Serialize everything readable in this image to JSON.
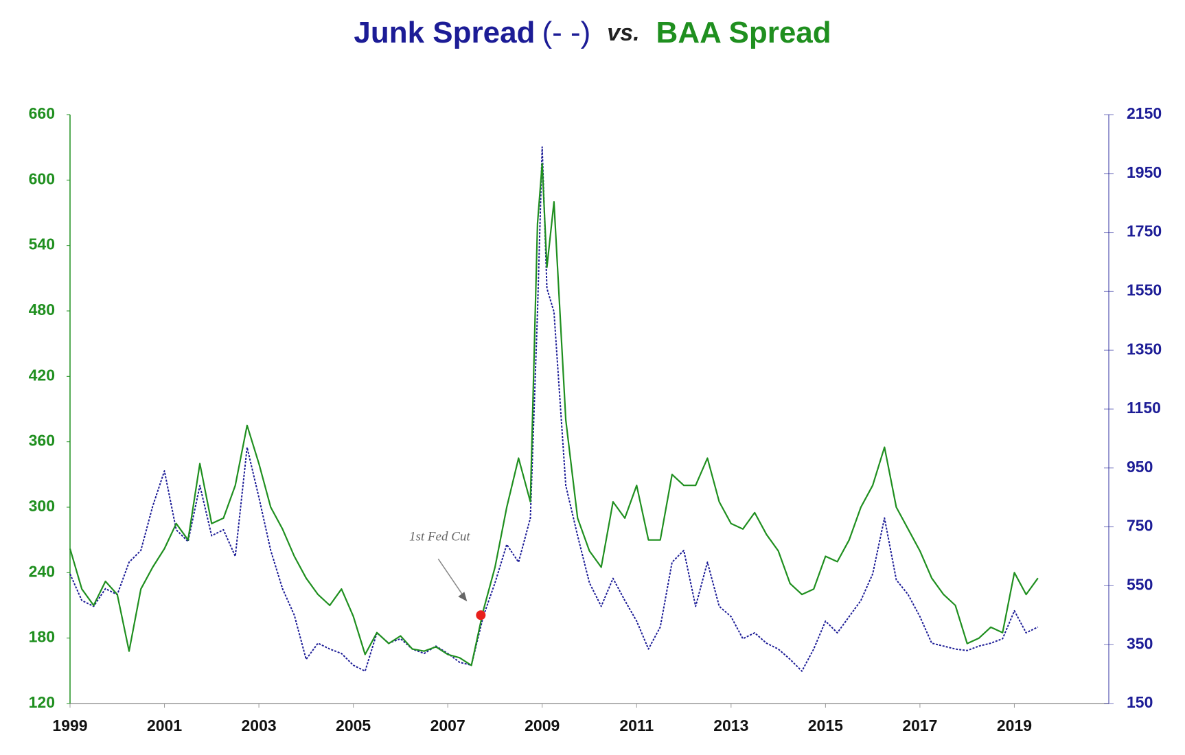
{
  "chart_data": {
    "type": "line",
    "title": {
      "marker": "(- -)",
      "joiner": "vs."
    },
    "x": [
      1999,
      1999.25,
      1999.5,
      1999.75,
      2000,
      2000.25,
      2000.5,
      2000.75,
      2001,
      2001.25,
      2001.5,
      2001.75,
      2002,
      2002.25,
      2002.5,
      2002.75,
      2003,
      2003.25,
      2003.5,
      2003.75,
      2004,
      2004.25,
      2004.5,
      2004.75,
      2005,
      2005.25,
      2005.5,
      2005.75,
      2006,
      2006.25,
      2006.5,
      2006.75,
      2007,
      2007.25,
      2007.5,
      2007.75,
      2008,
      2008.25,
      2008.5,
      2008.75,
      2008.9,
      2009,
      2009.1,
      2009.25,
      2009.5,
      2009.75,
      2010,
      2010.25,
      2010.5,
      2010.75,
      2011,
      2011.25,
      2011.5,
      2011.75,
      2012,
      2012.25,
      2012.5,
      2012.75,
      2013,
      2013.25,
      2013.5,
      2013.75,
      2014,
      2014.25,
      2014.5,
      2014.75,
      2015,
      2015.25,
      2015.5,
      2015.75,
      2016,
      2016.25,
      2016.5,
      2016.75,
      2017,
      2017.25,
      2017.5,
      2017.75,
      2018,
      2018.25,
      2018.5,
      2018.75,
      2019,
      2019.25,
      2019.5
    ],
    "series": [
      {
        "name": "Junk Spread",
        "color": "#1c1c96",
        "axis": "y2",
        "dashed": true,
        "values": [
          590,
          500,
          480,
          540,
          520,
          630,
          670,
          820,
          940,
          740,
          700,
          890,
          720,
          740,
          650,
          1020,
          850,
          670,
          540,
          450,
          300,
          355,
          335,
          320,
          280,
          260,
          390,
          355,
          370,
          335,
          320,
          345,
          320,
          290,
          280,
          445,
          560,
          690,
          630,
          780,
          1480,
          2040,
          1560,
          1480,
          890,
          720,
          560,
          480,
          575,
          500,
          430,
          335,
          410,
          630,
          670,
          480,
          630,
          480,
          445,
          370,
          390,
          355,
          335,
          300,
          260,
          335,
          430,
          390,
          445,
          500,
          590,
          780,
          570,
          520,
          445,
          355,
          345,
          335,
          330,
          345,
          355,
          370,
          465,
          390,
          410
        ]
      },
      {
        "name": "BAA Spread",
        "color": "#1f8f1f",
        "axis": "y",
        "dashed": false,
        "values": [
          262,
          225,
          210,
          232,
          220,
          168,
          225,
          245,
          262,
          285,
          270,
          340,
          285,
          290,
          320,
          375,
          340,
          300,
          280,
          255,
          235,
          220,
          210,
          225,
          200,
          165,
          185,
          175,
          182,
          170,
          168,
          172,
          165,
          162,
          155,
          205,
          245,
          300,
          345,
          305,
          560,
          615,
          520,
          580,
          380,
          290,
          260,
          245,
          305,
          290,
          320,
          270,
          270,
          330,
          320,
          320,
          345,
          305,
          285,
          280,
          295,
          275,
          260,
          230,
          220,
          225,
          255,
          250,
          270,
          300,
          320,
          355,
          300,
          280,
          260,
          235,
          220,
          210,
          175,
          180,
          190,
          185,
          240,
          220,
          235
        ]
      }
    ],
    "xlim": [
      1999,
      2021
    ],
    "xticks": [
      1999,
      2001,
      2003,
      2005,
      2007,
      2009,
      2011,
      2013,
      2015,
      2017,
      2019
    ],
    "ylim": [
      120,
      660
    ],
    "yticks": [
      120,
      180,
      240,
      300,
      360,
      420,
      480,
      540,
      600,
      660
    ],
    "y2lim": [
      150,
      2150
    ],
    "y2ticks": [
      150,
      350,
      550,
      750,
      950,
      1150,
      1350,
      1550,
      1750,
      1950,
      2150
    ],
    "annotation": {
      "text": "1st Fed Cut",
      "x": 2007.7,
      "y": 201,
      "color": "#e8201c"
    }
  }
}
